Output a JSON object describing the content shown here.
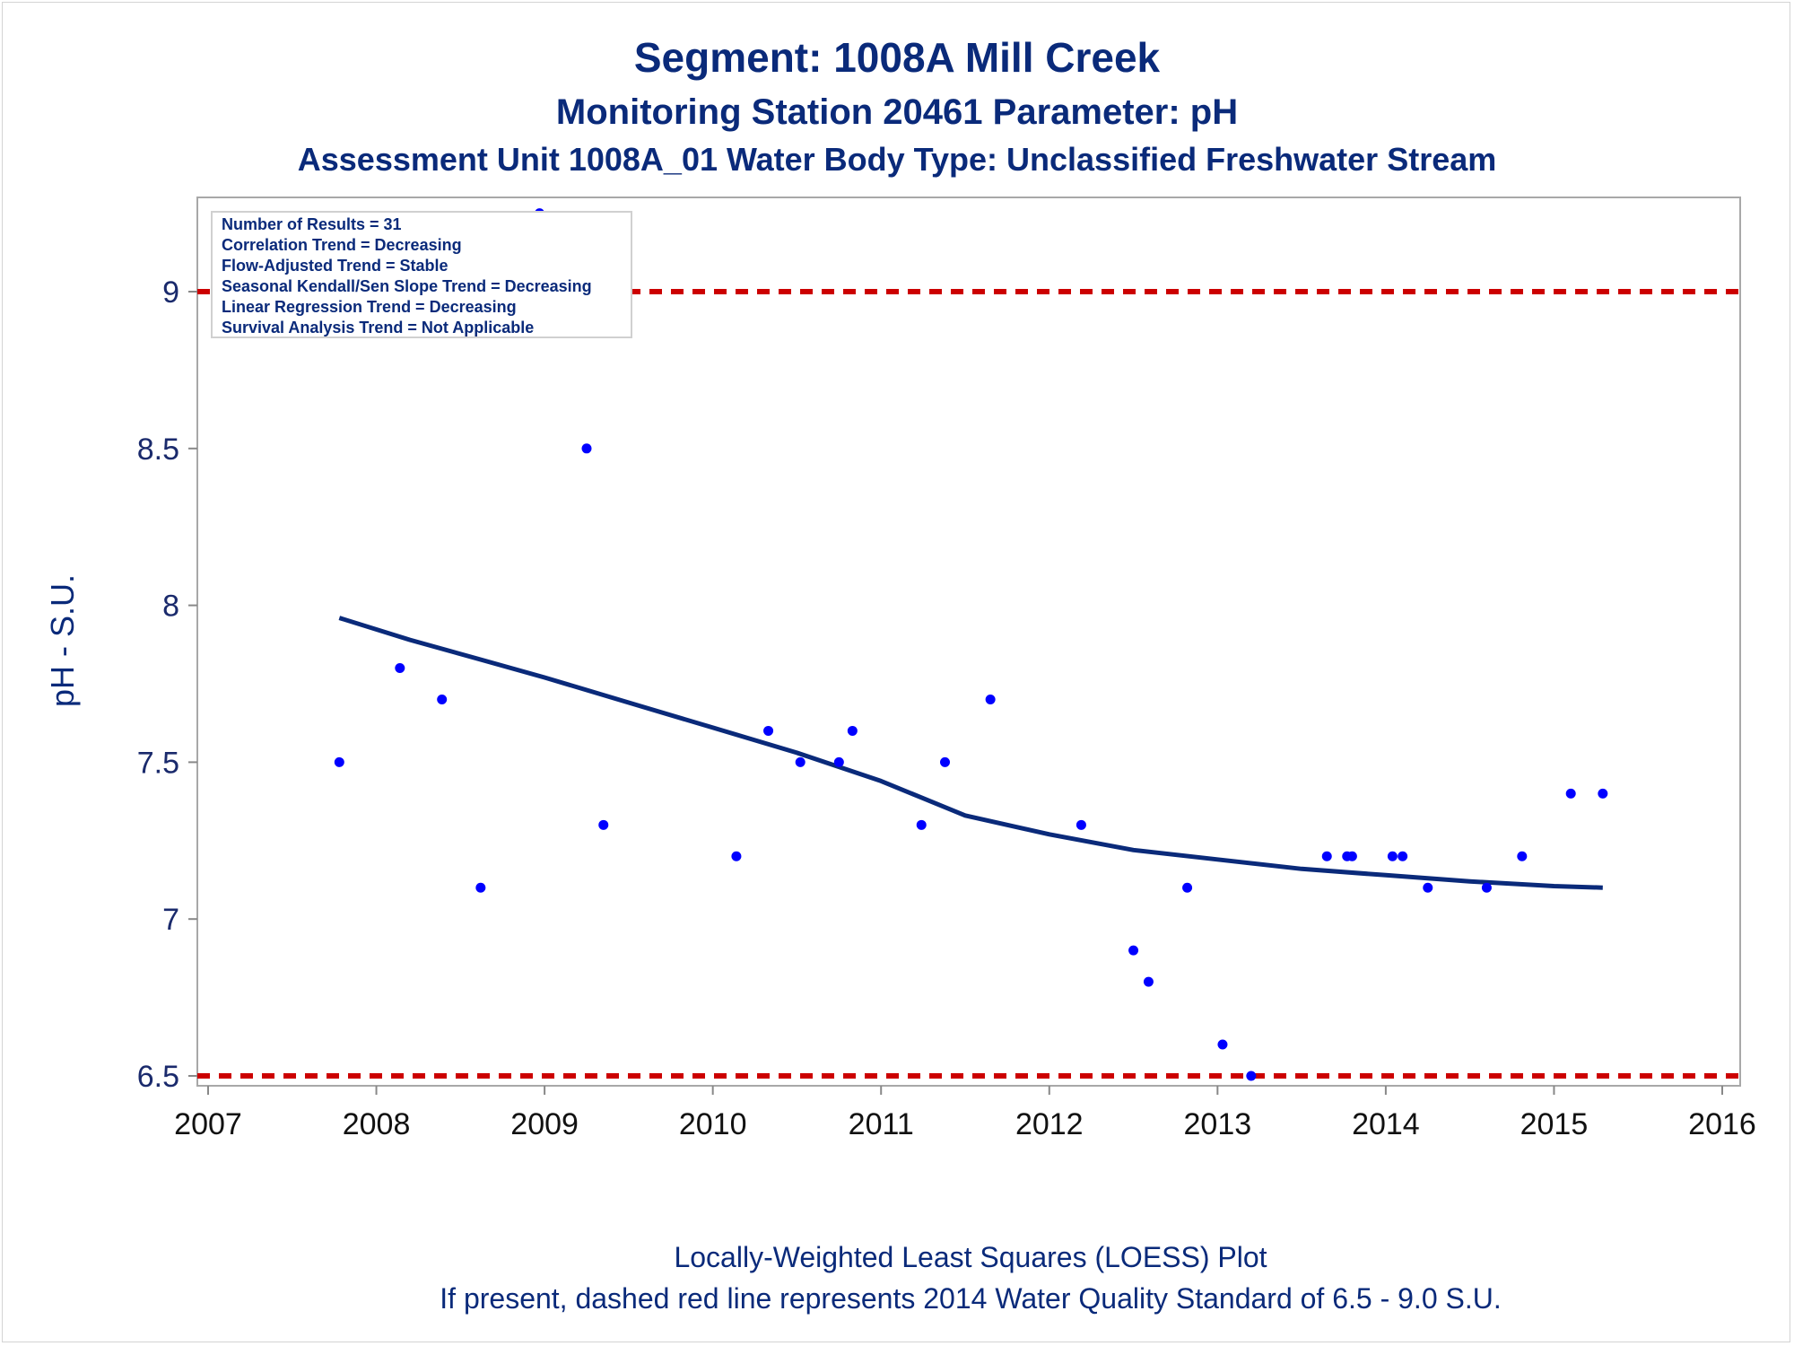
{
  "titles": {
    "line1": "Segment: 1008A  Mill Creek",
    "line2": "Monitoring Station 20461 Parameter: pH",
    "line3": "Assessment Unit 1008A_01   Water Body Type: Unclassified Freshwater Stream"
  },
  "footnotes": {
    "line1": "Locally-Weighted Least Squares (LOESS) Plot",
    "line2": "If present, dashed red line represents 2014 Water Quality Standard of 6.5 - 9.0 S.U."
  },
  "stats_box": {
    "lines": [
      "Number of Results = 31",
      "Correlation Trend = Decreasing",
      "Flow-Adjusted Trend = Stable",
      "Seasonal Kendall/Sen Slope Trend = Decreasing",
      "Linear Regression Trend = Decreasing",
      "Survival Analysis Trend = Not Applicable"
    ]
  },
  "colors": {
    "points": "#0000ff",
    "loess": "#0a2a7a",
    "standard": "#cc0000",
    "text": "#0a2a7a"
  },
  "chart_data": {
    "type": "scatter",
    "title": "Segment: 1008A  Mill Creek",
    "xlabel": "",
    "ylabel": "pH - S.U.",
    "xlim": [
      2007,
      2016
    ],
    "ylim": [
      6.5,
      9.25
    ],
    "x_ticks": [
      "2007",
      "2008",
      "2009",
      "2010",
      "2011",
      "2012",
      "2013",
      "2014",
      "2015",
      "2016"
    ],
    "y_ticks": [
      "6.5",
      "7",
      "7.5",
      "8",
      "8.5",
      "9"
    ],
    "grid": false,
    "legend": "top-left",
    "series": [
      {
        "type": "scatter",
        "x": [
          2007.78,
          2008.14,
          2008.39,
          2008.62,
          2008.97,
          2009.25,
          2009.35,
          2010.14,
          2010.33,
          2010.52,
          2010.75,
          2010.83,
          2011.24,
          2011.38,
          2011.65,
          2012.19,
          2012.5,
          2012.59,
          2012.82,
          2013.03,
          2013.2,
          2013.65,
          2013.77,
          2013.8,
          2014.04,
          2014.1,
          2014.25,
          2014.6,
          2014.81,
          2015.1,
          2015.29
        ],
        "y": [
          7.5,
          7.8,
          7.7,
          7.1,
          9.25,
          8.5,
          7.3,
          7.2,
          7.6,
          7.5,
          7.5,
          7.6,
          7.3,
          7.5,
          7.7,
          7.3,
          6.9,
          6.8,
          7.1,
          6.6,
          6.5,
          7.2,
          7.2,
          7.2,
          7.2,
          7.2,
          7.1,
          7.1,
          7.2,
          7.4,
          7.4
        ]
      },
      {
        "type": "line",
        "x": [
          2007.78,
          2008.2,
          2008.6,
          2009.0,
          2009.5,
          2010.0,
          2010.5,
          2011.0,
          2011.5,
          2012.0,
          2012.2,
          2012.5,
          2013.0,
          2013.5,
          2014.0,
          2014.5,
          2015.0,
          2015.29
        ],
        "y": [
          7.96,
          7.89,
          7.83,
          7.77,
          7.69,
          7.61,
          7.53,
          7.44,
          7.33,
          7.27,
          7.25,
          7.22,
          7.19,
          7.16,
          7.14,
          7.12,
          7.105,
          7.1
        ]
      }
    ],
    "reference_lines": [
      {
        "axis": "y",
        "value": 9.0,
        "style": "dashed"
      },
      {
        "axis": "y",
        "value": 6.5,
        "style": "dashed"
      }
    ]
  }
}
